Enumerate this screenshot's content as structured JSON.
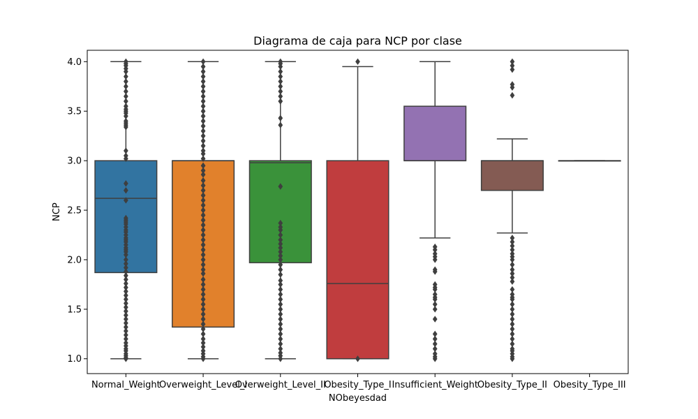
{
  "chart_data": {
    "type": "box",
    "title": "Diagrama de caja para NCP por clase",
    "xlabel": "NObeyesdad",
    "ylabel": "NCP",
    "ylim": [
      0.85,
      4.115
    ],
    "yticks": [
      1.0,
      1.5,
      2.0,
      2.5,
      3.0,
      3.5,
      4.0
    ],
    "ytick_labels": [
      "1.0",
      "1.5",
      "2.0",
      "2.5",
      "3.0",
      "3.5",
      "4.0"
    ],
    "grid": false,
    "legend": "none",
    "categories": [
      "Normal_Weight",
      "Overweight_Level_I",
      "Overweight_Level_II",
      "Obesity_Type_I",
      "Insufficient_Weight",
      "Obesity_Type_II",
      "Obesity_Type_III"
    ],
    "series": [
      {
        "category": "Normal_Weight",
        "color": "#3274a1",
        "whisker_low": 1.0,
        "q1": 1.87,
        "median": 2.62,
        "q3": 3.0,
        "whisker_high": 4.0,
        "outliers": [
          1.0,
          1.01,
          1.03,
          1.05,
          1.08,
          1.1,
          1.13,
          1.16,
          1.2,
          1.24,
          1.28,
          1.32,
          1.36,
          1.4,
          1.44,
          1.48,
          1.52,
          1.56,
          1.6,
          1.64,
          1.68,
          1.72,
          1.76,
          1.8,
          1.84,
          1.88,
          1.92,
          1.96,
          2.0,
          2.05,
          2.08,
          2.1,
          2.12,
          2.15,
          2.18,
          2.2,
          2.22,
          2.25,
          2.28,
          2.3,
          2.33,
          2.36,
          2.38,
          2.4,
          2.42,
          2.6,
          2.7,
          2.77,
          3.02,
          3.05,
          3.1,
          3.34,
          3.36,
          3.38,
          3.4,
          3.45,
          3.48,
          3.5,
          3.52,
          3.55,
          3.6,
          3.65,
          3.7,
          3.75,
          3.8,
          3.85,
          3.9,
          3.93,
          3.96,
          3.98,
          4.0
        ]
      },
      {
        "category": "Overweight_Level_I",
        "color": "#e1812c",
        "whisker_low": 1.0,
        "q1": 1.32,
        "median": 3.0,
        "q3": 3.0,
        "whisker_high": 4.0,
        "outliers": [
          1.0,
          1.02,
          1.05,
          1.08,
          1.12,
          1.16,
          1.2,
          1.25,
          1.3,
          1.35,
          1.4,
          1.45,
          1.5,
          1.55,
          1.6,
          1.65,
          1.7,
          1.75,
          1.8,
          1.86,
          1.9,
          1.95,
          2.0,
          2.05,
          2.1,
          2.15,
          2.2,
          2.25,
          2.3,
          2.35,
          2.4,
          2.45,
          2.5,
          2.55,
          2.6,
          2.65,
          2.7,
          2.75,
          2.8,
          2.86,
          2.9,
          2.95,
          3.02,
          3.07,
          3.1,
          3.15,
          3.2,
          3.25,
          3.3,
          3.35,
          3.4,
          3.45,
          3.5,
          3.55,
          3.6,
          3.65,
          3.7,
          3.75,
          3.8,
          3.85,
          3.9,
          3.95,
          4.0
        ]
      },
      {
        "category": "Overweight_Level_II",
        "color": "#3a923a",
        "whisker_low": 1.0,
        "q1": 1.97,
        "median": 2.98,
        "q3": 3.0,
        "whisker_high": 4.0,
        "outliers": [
          1.0,
          1.03,
          1.06,
          1.1,
          1.15,
          1.2,
          1.25,
          1.3,
          1.35,
          1.4,
          1.45,
          1.5,
          1.55,
          1.6,
          1.65,
          1.7,
          1.75,
          1.79,
          1.85,
          1.9,
          1.95,
          2.0,
          2.04,
          2.08,
          2.12,
          2.16,
          2.2,
          2.25,
          2.3,
          2.33,
          2.37,
          2.74,
          3.36,
          3.43,
          3.6,
          3.65,
          3.7,
          3.75,
          3.8,
          3.85,
          3.9,
          3.95,
          3.98,
          4.0
        ]
      },
      {
        "category": "Obesity_Type_I",
        "color": "#c03d3e",
        "whisker_low": 1.0,
        "q1": 1.0,
        "median": 1.76,
        "q3": 3.0,
        "whisker_high": 3.95,
        "outliers": [
          1.0,
          4.0
        ]
      },
      {
        "category": "Insufficient_Weight",
        "color": "#9372b2",
        "whisker_low": 2.22,
        "q1": 3.0,
        "median": 3.0,
        "q3": 3.55,
        "whisker_high": 4.0,
        "outliers": [
          1.0,
          1.02,
          1.05,
          1.1,
          1.15,
          1.2,
          1.25,
          1.4,
          1.5,
          1.55,
          1.6,
          1.62,
          1.65,
          1.7,
          1.72,
          1.75,
          1.88,
          1.9,
          2.0,
          2.03,
          2.06,
          2.1,
          2.13
        ]
      },
      {
        "category": "Obesity_Type_II",
        "color": "#845b53",
        "whisker_low": 2.27,
        "q1": 2.7,
        "median": 3.0,
        "q3": 3.0,
        "whisker_high": 3.22,
        "outliers": [
          1.0,
          1.02,
          1.05,
          1.08,
          1.1,
          1.15,
          1.2,
          1.25,
          1.3,
          1.35,
          1.4,
          1.45,
          1.5,
          1.55,
          1.6,
          1.62,
          1.65,
          1.7,
          1.78,
          1.82,
          1.86,
          1.9,
          1.95,
          2.0,
          2.03,
          2.06,
          2.1,
          2.14,
          2.18,
          2.22,
          3.66,
          3.74,
          3.77,
          3.92,
          3.96,
          4.0
        ]
      },
      {
        "category": "Obesity_Type_III",
        "color": "#d684bd",
        "whisker_low": 3.0,
        "q1": 3.0,
        "median": 3.0,
        "q3": 3.0,
        "whisker_high": 3.0,
        "outliers": []
      }
    ]
  }
}
